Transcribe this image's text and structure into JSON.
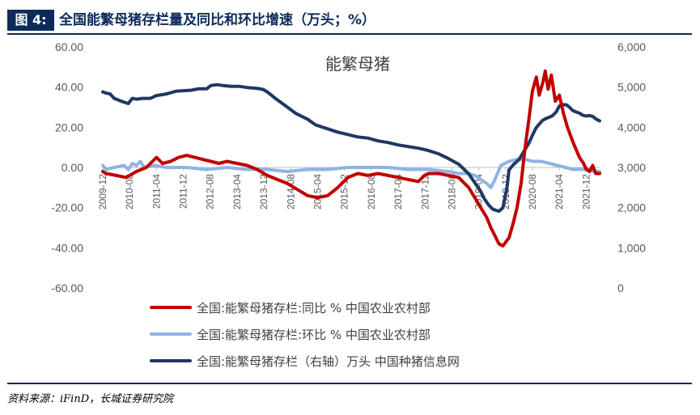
{
  "header": {
    "figure_label": "图 4:",
    "title": "全国能繁母猪存栏量及同比和环比增速（万头；%）"
  },
  "source": "资料来源：iFinD，长城证券研究院",
  "colors": {
    "yoy": "#c00000",
    "mom": "#8fb4e3",
    "stock": "#1f3864",
    "brand": "#0d2a5a",
    "axis": "#bfbfbf"
  },
  "chart_data": {
    "type": "line",
    "title": "能繁母猪",
    "y_left": {
      "min": -60,
      "max": 60,
      "ticks": [
        60,
        40,
        20,
        0,
        -20,
        -40,
        -60
      ],
      "tick_labels": [
        "60.00",
        "40.00",
        "20.00",
        "0.00",
        "-20.00",
        "-40.00",
        "-60.00"
      ]
    },
    "y_right": {
      "min": 0,
      "max": 6000,
      "ticks": [
        6000,
        5000,
        4000,
        3000,
        2000,
        1000,
        0
      ],
      "tick_labels": [
        "6,000",
        "5,000",
        "4,000",
        "3,000",
        "2,000",
        "1,000",
        "0"
      ]
    },
    "x_range": [
      2009.917,
      2022.25
    ],
    "x_ticks": [
      {
        "label": "2009-12",
        "t": 2009.917
      },
      {
        "label": "2010-08",
        "t": 2010.583
      },
      {
        "label": "2011-04",
        "t": 2011.25
      },
      {
        "label": "2011-12",
        "t": 2011.917
      },
      {
        "label": "2012-08",
        "t": 2012.583
      },
      {
        "label": "2013-04",
        "t": 2013.25
      },
      {
        "label": "2013-12",
        "t": 2013.917
      },
      {
        "label": "2014-08",
        "t": 2014.583
      },
      {
        "label": "2015-04",
        "t": 2015.25
      },
      {
        "label": "2015-12",
        "t": 2015.917
      },
      {
        "label": "2016-08",
        "t": 2016.583
      },
      {
        "label": "2017-04",
        "t": 2017.25
      },
      {
        "label": "2017-12",
        "t": 2017.917
      },
      {
        "label": "2018-08",
        "t": 2018.583
      },
      {
        "label": "2019-04",
        "t": 2019.25
      },
      {
        "label": "2019-12",
        "t": 2019.917
      },
      {
        "label": "2020-08",
        "t": 2020.583
      },
      {
        "label": "2021-04",
        "t": 2021.25
      },
      {
        "label": "2021-12",
        "t": 2021.917
      }
    ],
    "series": [
      {
        "name": "全国:能繁母猪存栏:同比 % 中国农业农村部",
        "axis": "left",
        "color": "#c00000",
        "points": [
          [
            2009.917,
            -2
          ],
          [
            2010.0,
            -3
          ],
          [
            2010.25,
            -4
          ],
          [
            2010.5,
            -5
          ],
          [
            2010.75,
            -2
          ],
          [
            2011.0,
            0
          ],
          [
            2011.15,
            3
          ],
          [
            2011.25,
            5
          ],
          [
            2011.4,
            2
          ],
          [
            2011.6,
            3
          ],
          [
            2011.8,
            5
          ],
          [
            2012.0,
            6
          ],
          [
            2012.2,
            5
          ],
          [
            2012.4,
            4
          ],
          [
            2012.6,
            3
          ],
          [
            2012.8,
            2
          ],
          [
            2013.0,
            3
          ],
          [
            2013.25,
            2
          ],
          [
            2013.5,
            1
          ],
          [
            2013.75,
            -1
          ],
          [
            2014.0,
            -4
          ],
          [
            2014.25,
            -6
          ],
          [
            2014.5,
            -8
          ],
          [
            2014.75,
            -11
          ],
          [
            2015.0,
            -14
          ],
          [
            2015.25,
            -15
          ],
          [
            2015.5,
            -14
          ],
          [
            2015.75,
            -10
          ],
          [
            2016.0,
            -5
          ],
          [
            2016.25,
            -3
          ],
          [
            2016.5,
            -4
          ],
          [
            2016.75,
            -3
          ],
          [
            2017.0,
            -4
          ],
          [
            2017.25,
            -5
          ],
          [
            2017.5,
            -6
          ],
          [
            2017.75,
            -7
          ],
          [
            2017.9,
            -4
          ],
          [
            2018.0,
            -3
          ],
          [
            2018.25,
            -3
          ],
          [
            2018.5,
            -4
          ],
          [
            2018.75,
            -5
          ],
          [
            2018.9,
            -8
          ],
          [
            2019.0,
            -10
          ],
          [
            2019.15,
            -15
          ],
          [
            2019.3,
            -20
          ],
          [
            2019.45,
            -25
          ],
          [
            2019.55,
            -30
          ],
          [
            2019.65,
            -34
          ],
          [
            2019.75,
            -38
          ],
          [
            2019.85,
            -39
          ],
          [
            2020.0,
            -35
          ],
          [
            2020.1,
            -28
          ],
          [
            2020.2,
            -20
          ],
          [
            2020.3,
            -8
          ],
          [
            2020.4,
            10
          ],
          [
            2020.5,
            25
          ],
          [
            2020.58,
            38
          ],
          [
            2020.68,
            45
          ],
          [
            2020.75,
            36
          ],
          [
            2020.85,
            43
          ],
          [
            2020.9,
            48
          ],
          [
            2020.97,
            39
          ],
          [
            2021.05,
            46
          ],
          [
            2021.15,
            33
          ],
          [
            2021.25,
            36
          ],
          [
            2021.35,
            27
          ],
          [
            2021.45,
            20
          ],
          [
            2021.6,
            12
          ],
          [
            2021.75,
            5
          ],
          [
            2021.85,
            2
          ],
          [
            2021.92,
            -1
          ],
          [
            2022.0,
            -2
          ],
          [
            2022.08,
            1
          ],
          [
            2022.15,
            -3
          ],
          [
            2022.25,
            -3
          ]
        ]
      },
      {
        "name": "全国:能繁母猪存栏:环比 % 中国农业农村部",
        "axis": "left",
        "color": "#8fb4e3",
        "points": [
          [
            2009.917,
            1
          ],
          [
            2010.0,
            -1
          ],
          [
            2010.2,
            0
          ],
          [
            2010.45,
            1
          ],
          [
            2010.55,
            -1
          ],
          [
            2010.65,
            2
          ],
          [
            2010.75,
            1
          ],
          [
            2010.85,
            3
          ],
          [
            2010.95,
            0
          ],
          [
            2011.2,
            1
          ],
          [
            2011.5,
            0
          ],
          [
            2012.0,
            0
          ],
          [
            2012.5,
            -1
          ],
          [
            2013.0,
            0
          ],
          [
            2013.5,
            -1
          ],
          [
            2014.0,
            -1
          ],
          [
            2014.5,
            -2
          ],
          [
            2015.0,
            -1
          ],
          [
            2015.5,
            -1
          ],
          [
            2016.0,
            0
          ],
          [
            2016.5,
            0
          ],
          [
            2017.0,
            0
          ],
          [
            2017.5,
            -1
          ],
          [
            2018.0,
            -1
          ],
          [
            2018.5,
            -2
          ],
          [
            2018.75,
            -3
          ],
          [
            2019.0,
            -3
          ],
          [
            2019.15,
            -4
          ],
          [
            2019.3,
            -6
          ],
          [
            2019.45,
            -8
          ],
          [
            2019.55,
            -10
          ],
          [
            2019.65,
            -6
          ],
          [
            2019.8,
            1
          ],
          [
            2019.9,
            2
          ],
          [
            2020.0,
            3
          ],
          [
            2020.2,
            4
          ],
          [
            2020.4,
            4
          ],
          [
            2020.6,
            3
          ],
          [
            2020.8,
            3
          ],
          [
            2021.0,
            2
          ],
          [
            2021.2,
            1
          ],
          [
            2021.4,
            0
          ],
          [
            2021.6,
            -1
          ],
          [
            2021.75,
            -1
          ],
          [
            2021.9,
            -1
          ],
          [
            2022.0,
            -1
          ],
          [
            2022.1,
            -2
          ],
          [
            2022.25,
            -2
          ]
        ]
      },
      {
        "name": "全国:能繁母猪存栏（右轴）万头 中国种猪信息网",
        "axis": "right",
        "color": "#1f3864",
        "points": [
          [
            2009.917,
            4880
          ],
          [
            2010.0,
            4850
          ],
          [
            2010.1,
            4830
          ],
          [
            2010.2,
            4720
          ],
          [
            2010.4,
            4640
          ],
          [
            2010.55,
            4590
          ],
          [
            2010.65,
            4720
          ],
          [
            2010.75,
            4700
          ],
          [
            2010.9,
            4720
          ],
          [
            2011.1,
            4720
          ],
          [
            2011.25,
            4790
          ],
          [
            2011.5,
            4830
          ],
          [
            2011.75,
            4900
          ],
          [
            2011.92,
            4910
          ],
          [
            2012.1,
            4920
          ],
          [
            2012.3,
            4960
          ],
          [
            2012.5,
            4960
          ],
          [
            2012.6,
            5040
          ],
          [
            2012.75,
            5060
          ],
          [
            2012.9,
            5040
          ],
          [
            2013.1,
            5020
          ],
          [
            2013.3,
            5020
          ],
          [
            2013.5,
            4990
          ],
          [
            2013.75,
            4970
          ],
          [
            2013.9,
            4940
          ],
          [
            2014.0,
            4880
          ],
          [
            2014.2,
            4720
          ],
          [
            2014.5,
            4500
          ],
          [
            2014.7,
            4350
          ],
          [
            2015.0,
            4200
          ],
          [
            2015.2,
            4060
          ],
          [
            2015.5,
            3960
          ],
          [
            2015.75,
            3880
          ],
          [
            2016.0,
            3820
          ],
          [
            2016.25,
            3760
          ],
          [
            2016.5,
            3730
          ],
          [
            2016.75,
            3660
          ],
          [
            2017.0,
            3620
          ],
          [
            2017.25,
            3560
          ],
          [
            2017.5,
            3520
          ],
          [
            2017.75,
            3480
          ],
          [
            2018.0,
            3420
          ],
          [
            2018.25,
            3340
          ],
          [
            2018.5,
            3220
          ],
          [
            2018.75,
            3080
          ],
          [
            2018.9,
            2940
          ],
          [
            2019.0,
            2840
          ],
          [
            2019.15,
            2620
          ],
          [
            2019.3,
            2400
          ],
          [
            2019.4,
            2200
          ],
          [
            2019.5,
            2060
          ],
          [
            2019.6,
            1960
          ],
          [
            2019.75,
            1910
          ],
          [
            2019.85,
            2000
          ],
          [
            2019.95,
            2500
          ],
          [
            2020.0,
            2940
          ],
          [
            2020.1,
            3060
          ],
          [
            2020.25,
            3200
          ],
          [
            2020.4,
            3450
          ],
          [
            2020.5,
            3620
          ],
          [
            2020.58,
            3800
          ],
          [
            2020.67,
            3980
          ],
          [
            2020.75,
            4080
          ],
          [
            2020.83,
            4170
          ],
          [
            2020.92,
            4220
          ],
          [
            2021.0,
            4250
          ],
          [
            2021.08,
            4290
          ],
          [
            2021.17,
            4380
          ],
          [
            2021.25,
            4530
          ],
          [
            2021.33,
            4560
          ],
          [
            2021.42,
            4560
          ],
          [
            2021.5,
            4500
          ],
          [
            2021.58,
            4420
          ],
          [
            2021.67,
            4380
          ],
          [
            2021.75,
            4350
          ],
          [
            2021.83,
            4300
          ],
          [
            2021.92,
            4280
          ],
          [
            2022.0,
            4290
          ],
          [
            2022.08,
            4270
          ],
          [
            2022.17,
            4200
          ],
          [
            2022.25,
            4160
          ]
        ]
      }
    ]
  }
}
